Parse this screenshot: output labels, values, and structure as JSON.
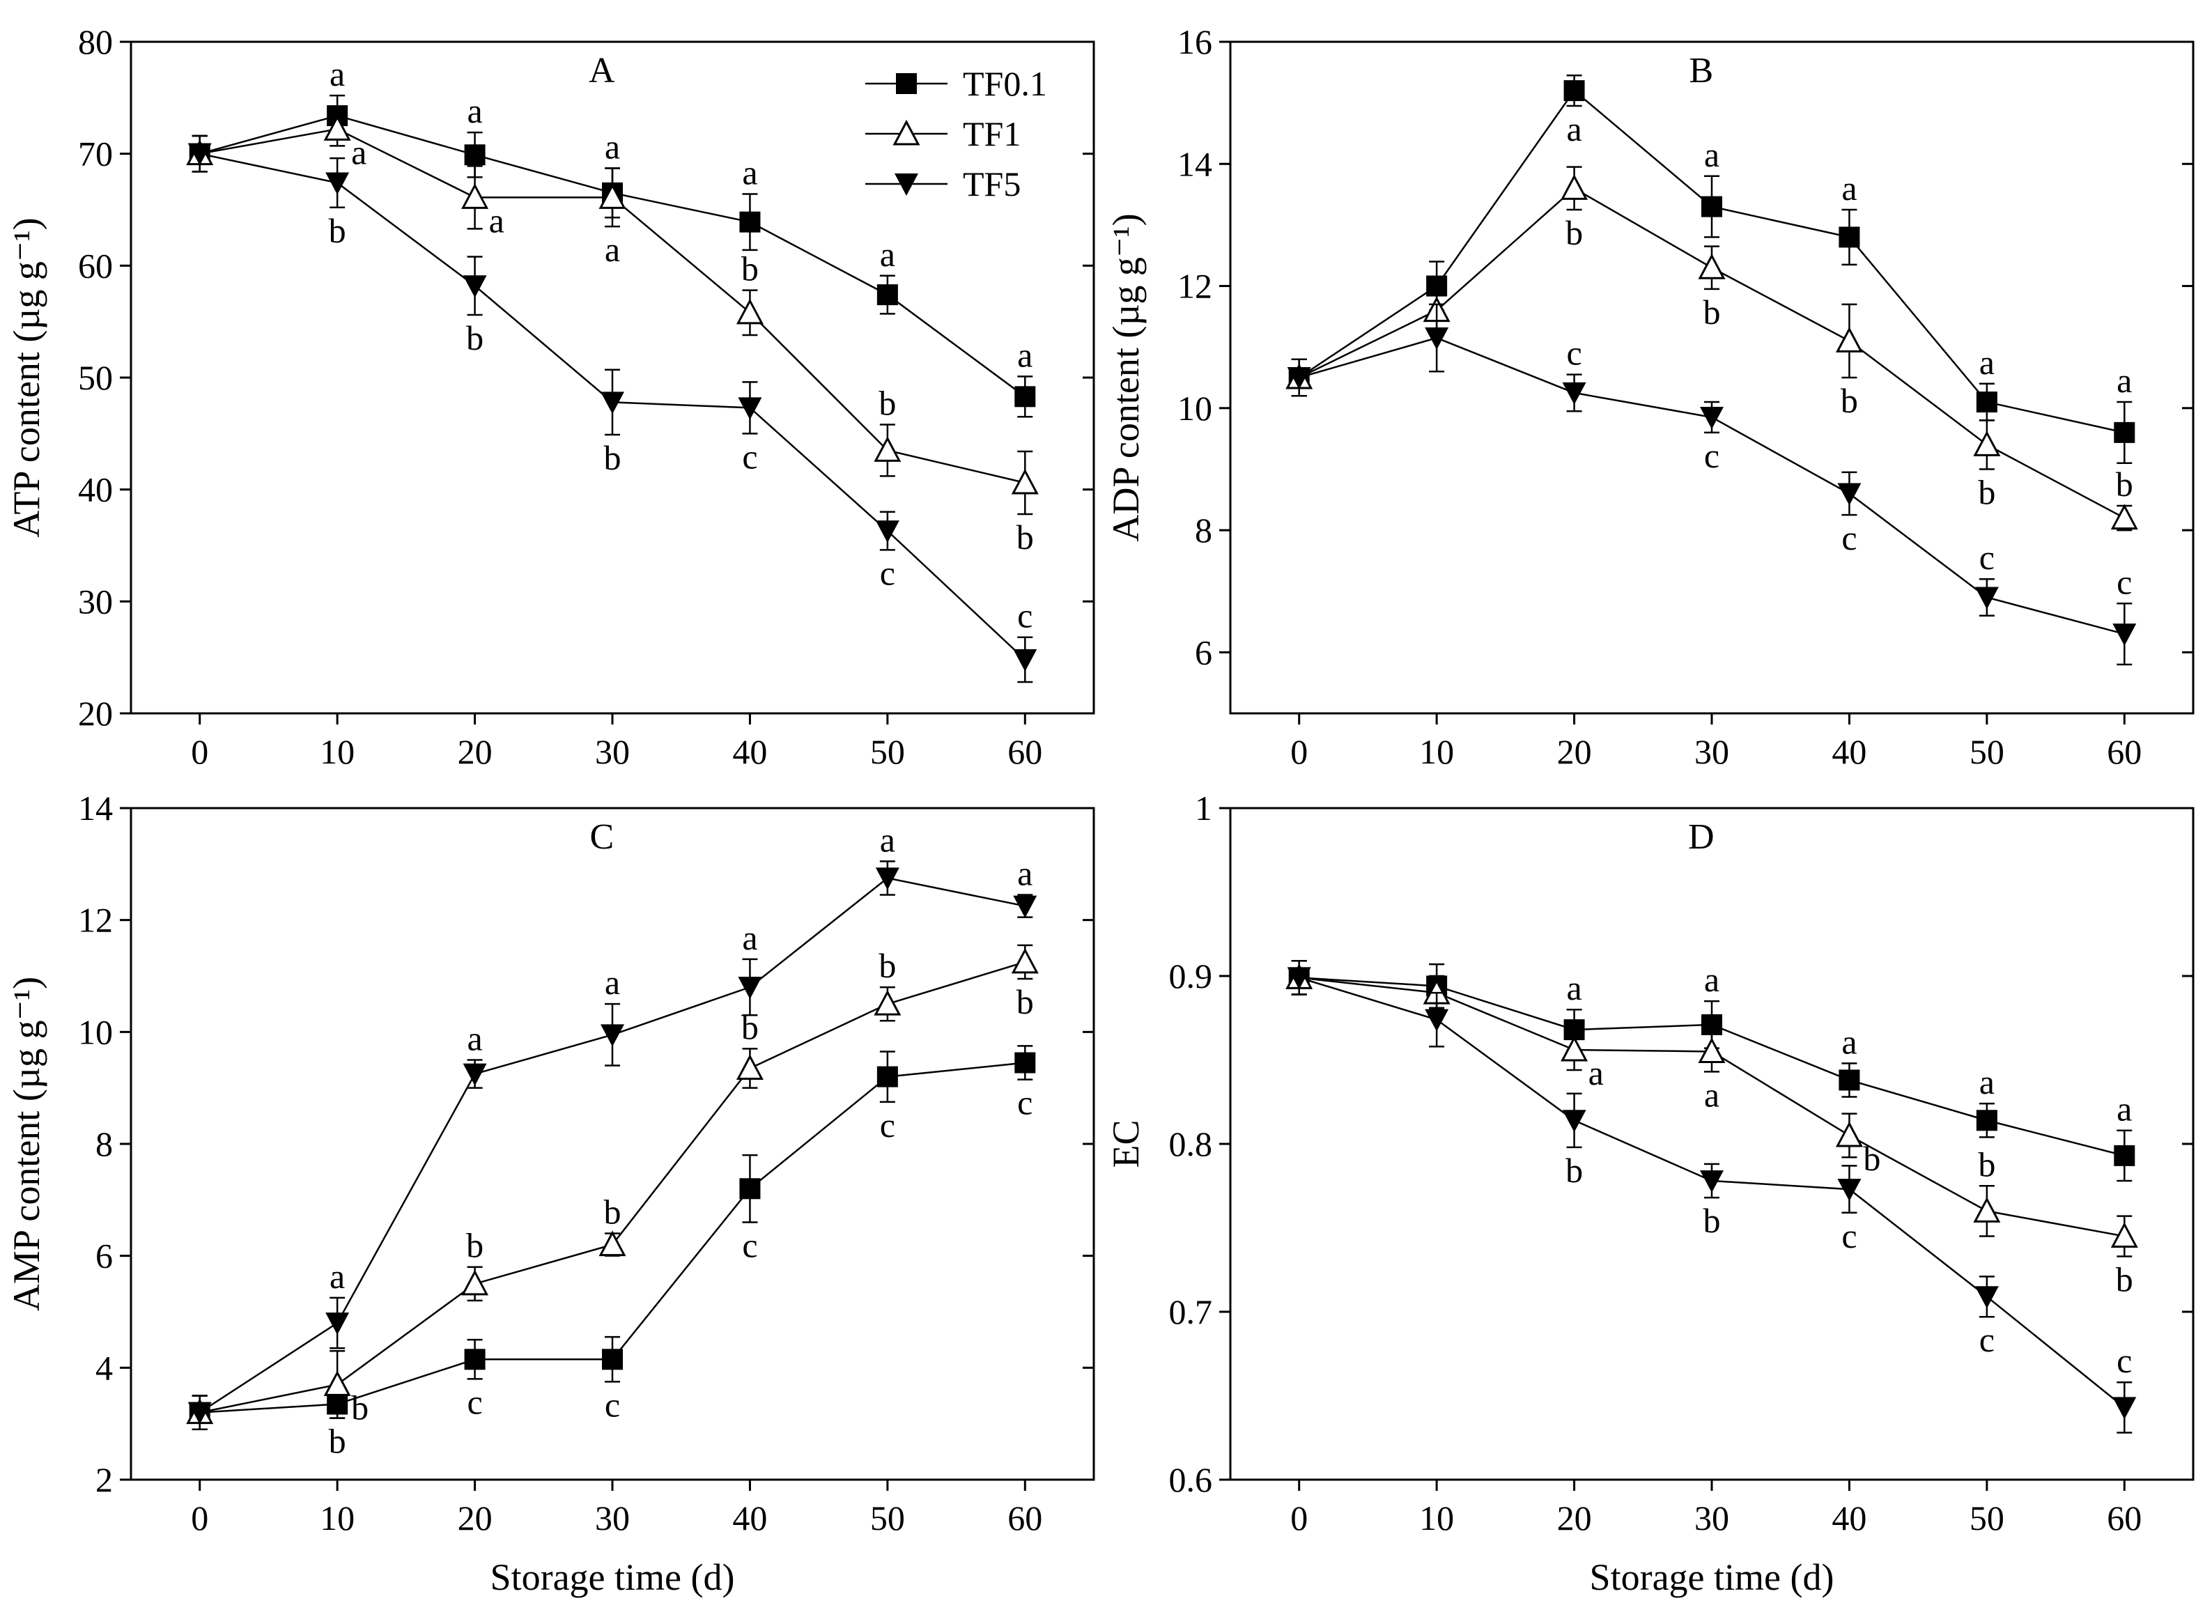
{
  "figure": {
    "xlabel_bottom": "Storage time (d)"
  },
  "legend": [
    {
      "name": "TF0.1",
      "marker": "square-filled"
    },
    {
      "name": "TF1",
      "marker": "triangle-up-open"
    },
    {
      "name": "TF5",
      "marker": "triangle-down-filled"
    }
  ],
  "chart_data": [
    {
      "panel": "A",
      "type": "line",
      "title": "A",
      "xlabel": "",
      "ylabel": "ATP content (µg g⁻¹)",
      "x": [
        0,
        10,
        20,
        30,
        40,
        50,
        60
      ],
      "xlim": [
        -5,
        65
      ],
      "ylim": [
        20,
        80
      ],
      "xticks": [
        0,
        10,
        20,
        30,
        40,
        50,
        60
      ],
      "yticks": [
        20,
        30,
        40,
        50,
        60,
        70,
        80
      ],
      "legend_location": "top-right",
      "series": [
        {
          "name": "TF0.1",
          "values": [
            70.0,
            73.4,
            69.9,
            66.5,
            63.9,
            57.4,
            48.3
          ],
          "errors": [
            1.6,
            1.8,
            2.0,
            2.2,
            2.5,
            1.7,
            1.8
          ],
          "labels": [
            "",
            "a",
            "a",
            "a",
            "a",
            "a",
            "a"
          ],
          "label_pos": [
            "",
            "above",
            "above",
            "above",
            "above",
            "above",
            "above"
          ]
        },
        {
          "name": "TF1",
          "values": [
            70.0,
            72.2,
            66.1,
            66.1,
            55.8,
            43.5,
            40.6
          ],
          "errors": [
            1.6,
            1.5,
            2.8,
            2.6,
            2.0,
            2.3,
            2.8
          ],
          "labels": [
            "",
            "a",
            "a",
            "a",
            "b",
            "b",
            "b"
          ],
          "label_pos": [
            "",
            "right",
            "right",
            "below",
            "above",
            "above",
            "below"
          ]
        },
        {
          "name": "TF5",
          "values": [
            70.0,
            67.4,
            58.2,
            47.8,
            47.3,
            36.3,
            24.8
          ],
          "errors": [
            1.6,
            2.2,
            2.6,
            2.9,
            2.3,
            1.7,
            2.0
          ],
          "labels": [
            "",
            "b",
            "b",
            "b",
            "c",
            "c",
            "c"
          ],
          "label_pos": [
            "",
            "below",
            "below",
            "below",
            "below",
            "below",
            "above"
          ]
        }
      ]
    },
    {
      "panel": "B",
      "type": "line",
      "title": "B",
      "xlabel": "",
      "ylabel": "ADP content (µg g⁻¹)",
      "x": [
        0,
        10,
        20,
        30,
        40,
        50,
        60
      ],
      "xlim": [
        -5,
        65
      ],
      "ylim": [
        5,
        16
      ],
      "xticks": [
        0,
        10,
        20,
        30,
        40,
        50,
        60
      ],
      "yticks": [
        6,
        8,
        10,
        12,
        14,
        16
      ],
      "series": [
        {
          "name": "TF0.1",
          "values": [
            10.5,
            12.0,
            15.2,
            13.3,
            12.8,
            10.1,
            9.6
          ],
          "errors": [
            0.3,
            0.4,
            0.25,
            0.5,
            0.45,
            0.3,
            0.5
          ],
          "labels": [
            "",
            "",
            "a",
            "a",
            "a",
            "a",
            "a"
          ],
          "label_pos": [
            "",
            "",
            "below",
            "above",
            "above",
            "above",
            "above"
          ]
        },
        {
          "name": "TF1",
          "values": [
            10.5,
            11.6,
            13.6,
            12.3,
            11.1,
            9.4,
            8.2
          ],
          "errors": [
            0.3,
            0.3,
            0.35,
            0.35,
            0.6,
            0.4,
            0.2
          ],
          "labels": [
            "",
            "",
            "b",
            "b",
            "b",
            "b",
            "b"
          ],
          "label_pos": [
            "",
            "",
            "below",
            "below",
            "below",
            "below",
            "above"
          ]
        },
        {
          "name": "TF5",
          "values": [
            10.5,
            11.15,
            10.25,
            9.85,
            8.6,
            6.9,
            6.3
          ],
          "errors": [
            0.3,
            0.55,
            0.3,
            0.25,
            0.35,
            0.3,
            0.5
          ],
          "labels": [
            "",
            "",
            "c",
            "c",
            "c",
            "c",
            "c"
          ],
          "label_pos": [
            "",
            "",
            "above",
            "below",
            "below",
            "above",
            "above"
          ]
        }
      ]
    },
    {
      "panel": "C",
      "type": "line",
      "title": "C",
      "xlabel": "Storage time (d)",
      "ylabel": "AMP content (µg g⁻¹)",
      "x": [
        0,
        10,
        20,
        30,
        40,
        50,
        60
      ],
      "xlim": [
        -5,
        65
      ],
      "ylim": [
        2,
        14
      ],
      "xticks": [
        0,
        10,
        20,
        30,
        40,
        50,
        60
      ],
      "yticks": [
        2,
        4,
        6,
        8,
        10,
        12,
        14
      ],
      "series": [
        {
          "name": "TF0.1",
          "values": [
            3.2,
            3.35,
            4.15,
            4.15,
            7.2,
            9.2,
            9.45
          ],
          "errors": [
            0.3,
            0.25,
            0.35,
            0.4,
            0.6,
            0.45,
            0.3
          ],
          "labels": [
            "",
            "b",
            "c",
            "c",
            "c",
            "c",
            "c"
          ],
          "label_pos": [
            "",
            "below",
            "below",
            "below",
            "below",
            "below",
            "below"
          ]
        },
        {
          "name": "TF1",
          "values": [
            3.2,
            3.7,
            5.5,
            6.2,
            9.35,
            10.5,
            11.25
          ],
          "errors": [
            0.3,
            0.6,
            0.3,
            0.2,
            0.35,
            0.3,
            0.3
          ],
          "labels": [
            "",
            "b",
            "b",
            "b",
            "b",
            "b",
            "b"
          ],
          "label_pos": [
            "",
            "right",
            "above",
            "above",
            "above",
            "above",
            "below"
          ]
        },
        {
          "name": "TF5",
          "values": [
            3.2,
            4.8,
            9.25,
            9.95,
            10.8,
            12.75,
            12.25
          ],
          "errors": [
            0.3,
            0.45,
            0.25,
            0.55,
            0.5,
            0.3,
            0.2
          ],
          "labels": [
            "",
            "a",
            "a",
            "a",
            "a",
            "a",
            "a"
          ],
          "label_pos": [
            "",
            "above",
            "above",
            "above",
            "above",
            "above",
            "above"
          ]
        }
      ]
    },
    {
      "panel": "D",
      "type": "line",
      "title": "D",
      "xlabel": "Storage time (d)",
      "ylabel": "EC",
      "x": [
        0,
        10,
        20,
        30,
        40,
        50,
        60
      ],
      "xlim": [
        -5,
        65
      ],
      "ylim": [
        0.6,
        1.0
      ],
      "xticks": [
        0,
        10,
        20,
        30,
        40,
        50,
        60
      ],
      "yticks": [
        0.6,
        0.7,
        0.8,
        0.9,
        1.0
      ],
      "series": [
        {
          "name": "TF0.1",
          "values": [
            0.899,
            0.894,
            0.868,
            0.871,
            0.838,
            0.814,
            0.793
          ],
          "errors": [
            0.01,
            0.013,
            0.012,
            0.014,
            0.01,
            0.01,
            0.015
          ],
          "labels": [
            "",
            "",
            "a",
            "a",
            "a",
            "a",
            "a"
          ],
          "label_pos": [
            "",
            "",
            "above",
            "above",
            "above",
            "above",
            "above"
          ]
        },
        {
          "name": "TF1",
          "values": [
            0.899,
            0.89,
            0.856,
            0.855,
            0.805,
            0.76,
            0.745
          ],
          "errors": [
            0.01,
            0.01,
            0.012,
            0.012,
            0.013,
            0.015,
            0.012
          ],
          "labels": [
            "",
            "",
            "a",
            "a",
            "b",
            "b",
            "b"
          ],
          "label_pos": [
            "",
            "",
            "right",
            "below",
            "right",
            "above",
            "below"
          ]
        },
        {
          "name": "TF5",
          "values": [
            0.899,
            0.874,
            0.814,
            0.778,
            0.773,
            0.709,
            0.643
          ],
          "errors": [
            0.01,
            0.016,
            0.016,
            0.01,
            0.014,
            0.012,
            0.015
          ],
          "labels": [
            "",
            "",
            "b",
            "b",
            "c",
            "c",
            "c"
          ],
          "label_pos": [
            "",
            "",
            "below",
            "below",
            "below",
            "below",
            "above"
          ]
        }
      ]
    }
  ]
}
